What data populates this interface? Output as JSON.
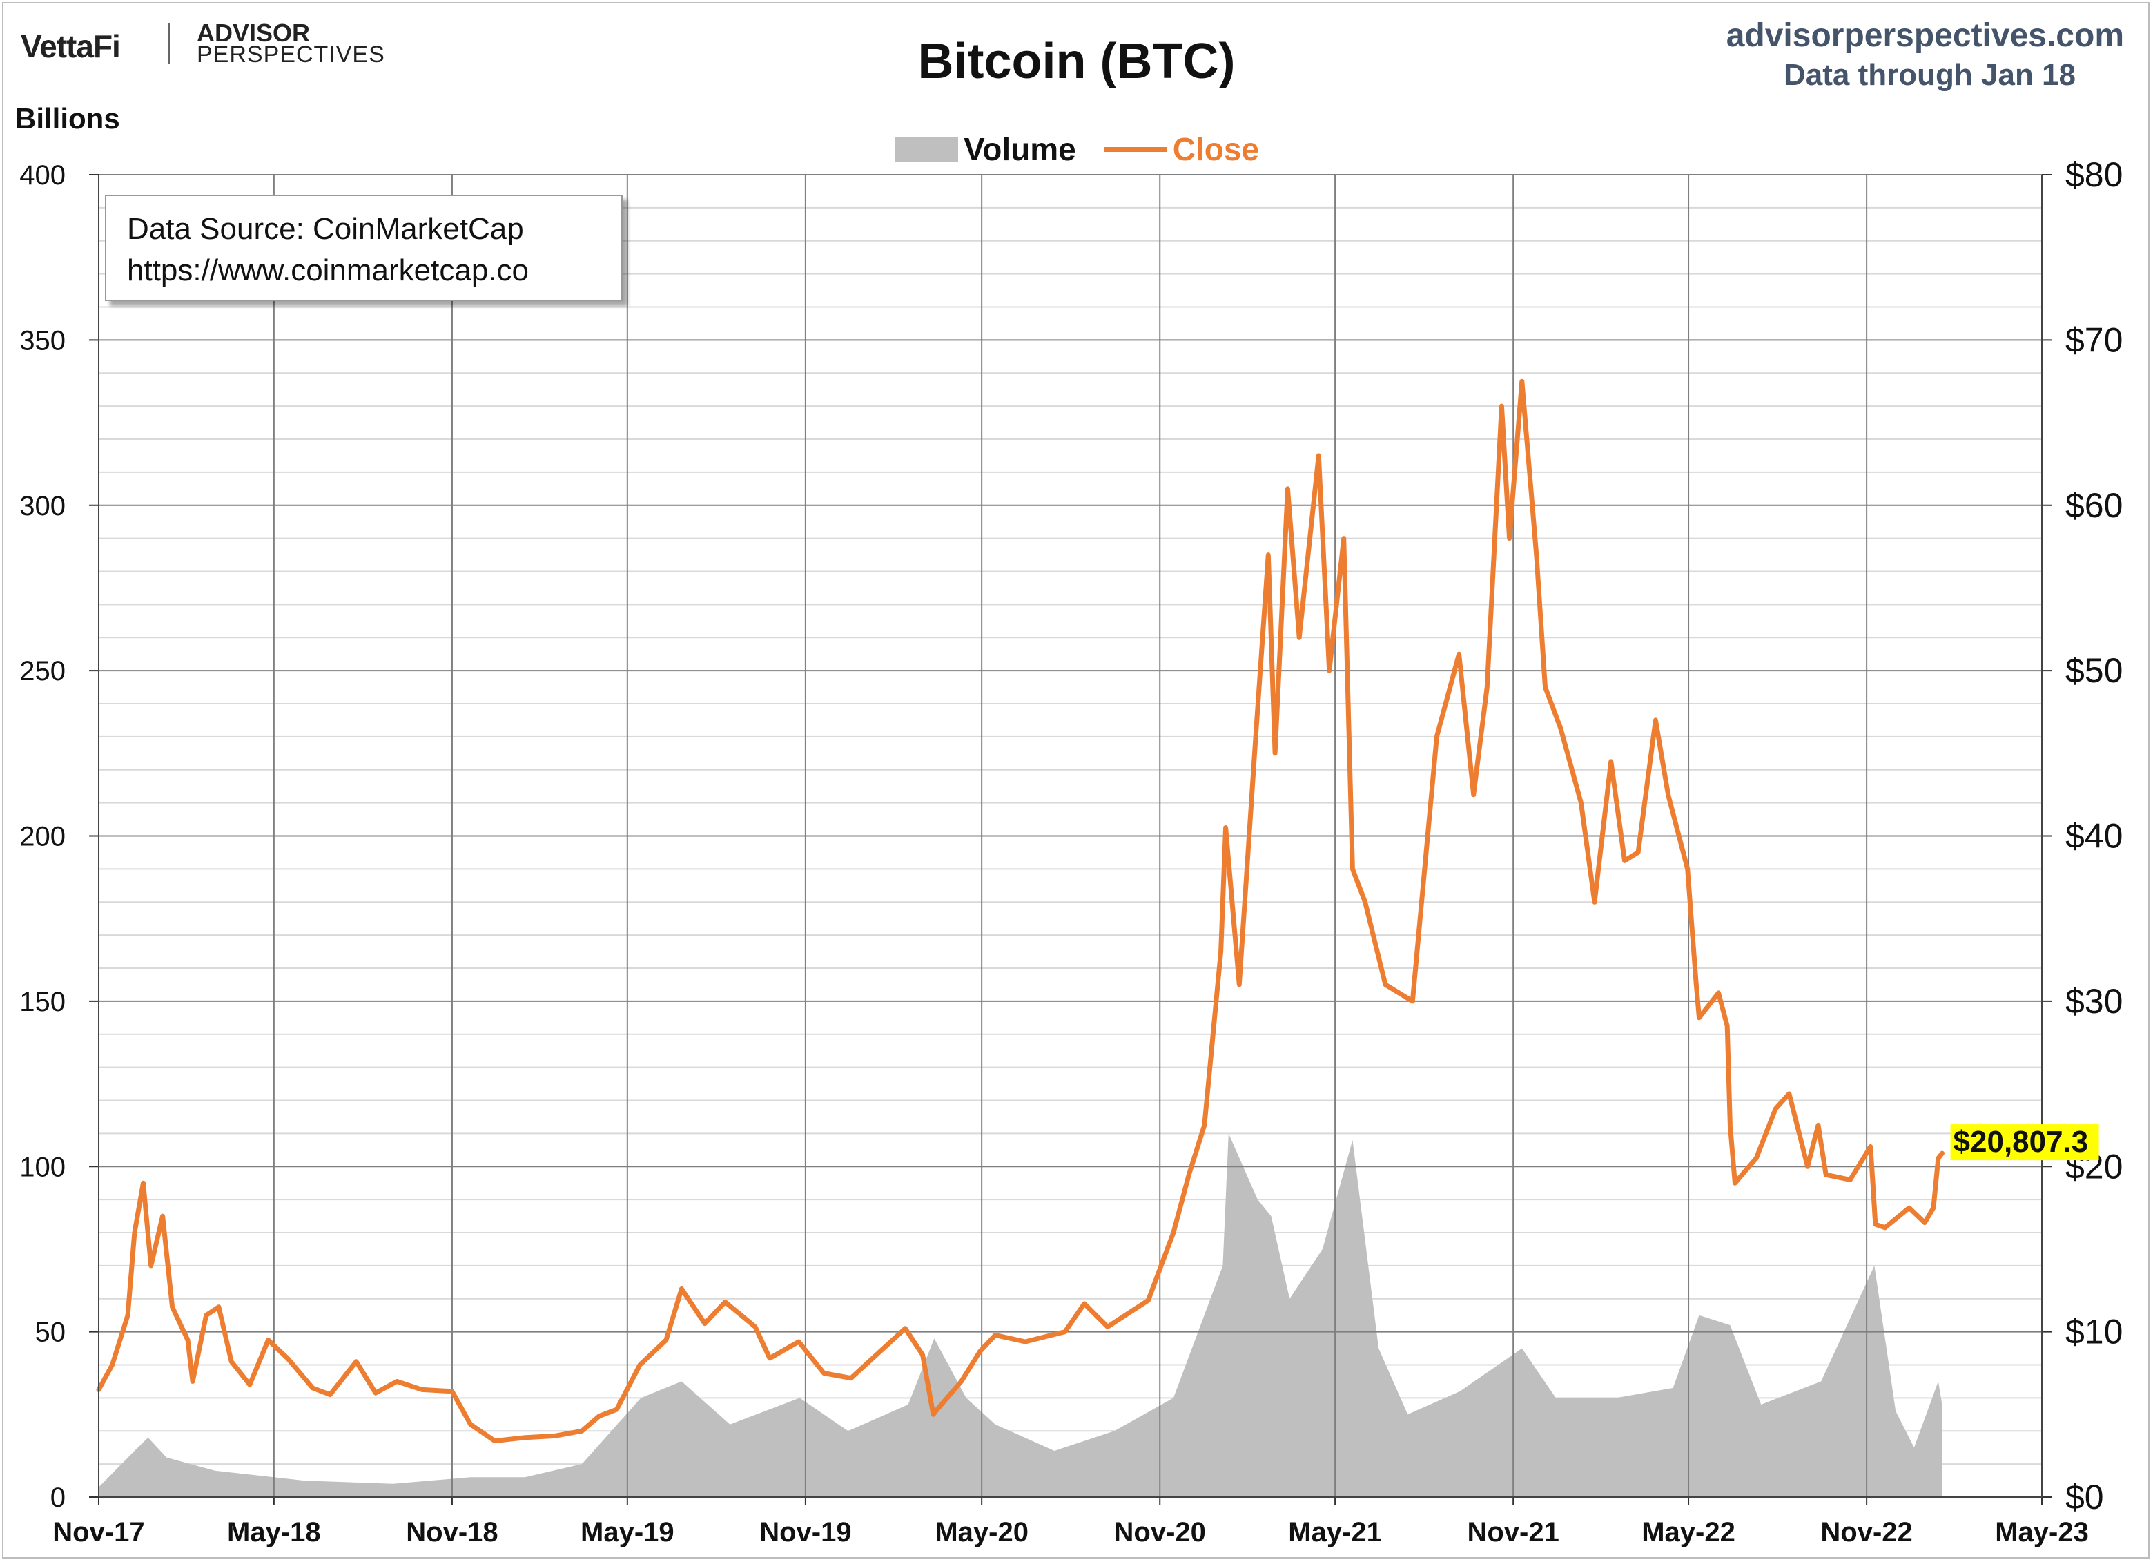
{
  "header": {
    "logo_vettafi": "VettaFi",
    "logo_ap_line1": "ADVISOR",
    "logo_ap_line2": "PERSPECTIVES",
    "site": "advisorperspectives.com",
    "data_through": "Data through Jan 18"
  },
  "source_box": {
    "line1": "Data Source: CoinMarketCap",
    "line2": "https://www.coinmarketcap.co"
  },
  "colors": {
    "close": "#ed7d31",
    "volume": "#bfbfbf",
    "grid_major": "#7f7f7f",
    "grid_minor": "#d9d9d9",
    "label_highlight": "#ffff00",
    "header_text": "#44546a"
  },
  "chart_data": {
    "type": "line",
    "title": "Bitcoin (BTC)",
    "left_axis": {
      "label": "Billions",
      "min": 0,
      "max": 400,
      "ticks": [
        0,
        50,
        100,
        150,
        200,
        250,
        300,
        350,
        400
      ]
    },
    "right_axis": {
      "label": "",
      "min": 0,
      "max": 80,
      "tick_labels": [
        "$0",
        "$10",
        "$20",
        "$30",
        "$40",
        "$50",
        "$60",
        "$70",
        "$80"
      ]
    },
    "x_axis": {
      "start": "2017-11-01",
      "end": "2023-05-01",
      "tick_labels": [
        "Nov-17",
        "May-18",
        "Nov-18",
        "May-19",
        "Nov-19",
        "May-20",
        "Nov-20",
        "May-21",
        "Nov-21",
        "May-22",
        "Nov-22",
        "May-23"
      ]
    },
    "grid": true,
    "legend": {
      "position": "top-center",
      "entries": [
        "Volume",
        "Close"
      ]
    },
    "last_value_label": "$20,807.3",
    "series": [
      {
        "name": "Close",
        "axis": "right",
        "style": "line",
        "x": [
          "2017-11-01",
          "2017-11-15",
          "2017-12-01",
          "2017-12-08",
          "2017-12-17",
          "2017-12-25",
          "2018-01-06",
          "2018-01-16",
          "2018-02-01",
          "2018-02-06",
          "2018-02-20",
          "2018-03-05",
          "2018-03-18",
          "2018-04-06",
          "2018-04-25",
          "2018-05-15",
          "2018-06-10",
          "2018-06-28",
          "2018-07-25",
          "2018-08-14",
          "2018-09-05",
          "2018-10-01",
          "2018-11-01",
          "2018-11-20",
          "2018-12-15",
          "2019-01-15",
          "2019-02-15",
          "2019-03-15",
          "2019-04-02",
          "2019-04-20",
          "2019-05-14",
          "2019-06-10",
          "2019-06-26",
          "2019-07-20",
          "2019-08-10",
          "2019-09-10",
          "2019-09-25",
          "2019-10-25",
          "2019-11-20",
          "2019-12-18",
          "2020-01-15",
          "2020-02-12",
          "2020-03-01",
          "2020-03-12",
          "2020-03-16",
          "2020-04-10",
          "2020-04-29",
          "2020-05-15",
          "2020-06-15",
          "2020-07-26",
          "2020-08-15",
          "2020-09-08",
          "2020-10-20",
          "2020-11-15",
          "2020-12-01",
          "2020-12-17",
          "2021-01-03",
          "2021-01-08",
          "2021-01-22",
          "2021-02-08",
          "2021-02-21",
          "2021-02-28",
          "2021-03-13",
          "2021-03-25",
          "2021-04-14",
          "2021-04-25",
          "2021-05-10",
          "2021-05-19",
          "2021-06-01",
          "2021-06-22",
          "2021-07-20",
          "2021-08-14",
          "2021-09-06",
          "2021-09-21",
          "2021-10-05",
          "2021-10-20",
          "2021-10-28",
          "2021-11-10",
          "2021-11-25",
          "2021-12-04",
          "2021-12-20",
          "2022-01-10",
          "2022-01-24",
          "2022-02-10",
          "2022-02-24",
          "2022-03-10",
          "2022-03-28",
          "2022-04-10",
          "2022-04-30",
          "2022-05-09",
          "2022-05-12",
          "2022-06-01",
          "2022-06-10",
          "2022-06-13",
          "2022-06-18",
          "2022-07-10",
          "2022-07-30",
          "2022-08-13",
          "2022-09-01",
          "2022-09-12",
          "2022-09-20",
          "2022-10-15",
          "2022-11-05",
          "2022-11-08",
          "2022-11-10",
          "2022-11-20",
          "2022-12-15",
          "2022-12-31",
          "2023-01-09",
          "2023-01-14",
          "2023-01-18"
        ],
        "values": [
          6.5,
          8.0,
          11.0,
          16.0,
          19.0,
          14.0,
          17.0,
          11.5,
          9.5,
          7.0,
          11.0,
          11.5,
          8.2,
          6.8,
          9.5,
          8.4,
          6.6,
          6.2,
          8.2,
          6.3,
          7.0,
          6.5,
          6.4,
          4.4,
          3.4,
          3.6,
          3.7,
          4.0,
          4.9,
          5.3,
          8.0,
          9.5,
          12.6,
          10.5,
          11.8,
          10.3,
          8.4,
          9.4,
          7.5,
          7.2,
          8.7,
          10.2,
          8.6,
          5.0,
          5.3,
          7.0,
          8.8,
          9.8,
          9.4,
          10.0,
          11.7,
          10.3,
          11.9,
          16.0,
          19.5,
          22.5,
          33.0,
          40.5,
          31.0,
          46.0,
          57.0,
          45.0,
          61.0,
          52.0,
          63.0,
          50.0,
          58.0,
          38.0,
          36.0,
          31.0,
          30.0,
          46.0,
          51.0,
          42.5,
          49.0,
          66.0,
          58.0,
          67.5,
          57.0,
          49.0,
          46.5,
          42.0,
          36.0,
          44.5,
          38.5,
          39.0,
          47.0,
          42.5,
          38.0,
          31.0,
          29.0,
          30.5,
          28.5,
          22.5,
          19.0,
          20.5,
          23.5,
          24.4,
          20.0,
          22.5,
          19.5,
          19.2,
          21.2,
          18.5,
          16.5,
          16.3,
          17.5,
          16.6,
          17.5,
          20.5,
          20.8
        ]
      },
      {
        "name": "Volume",
        "axis": "left",
        "style": "area",
        "x": [
          "2017-11-01",
          "2017-12-08",
          "2017-12-22",
          "2018-01-10",
          "2018-03-01",
          "2018-06-01",
          "2018-09-01",
          "2018-11-20",
          "2019-01-15",
          "2019-03-15",
          "2019-05-15",
          "2019-06-26",
          "2019-08-15",
          "2019-10-26",
          "2019-12-15",
          "2020-02-15",
          "2020-03-13",
          "2020-04-15",
          "2020-05-15",
          "2020-07-15",
          "2020-09-15",
          "2020-11-15",
          "2021-01-05",
          "2021-01-11",
          "2021-02-10",
          "2021-02-24",
          "2021-03-15",
          "2021-04-18",
          "2021-05-19",
          "2021-06-15",
          "2021-07-15",
          "2021-09-07",
          "2021-11-10",
          "2021-12-15",
          "2022-02-15",
          "2022-04-15",
          "2022-05-12",
          "2022-06-13",
          "2022-07-15",
          "2022-09-15",
          "2022-11-09",
          "2022-12-01",
          "2022-12-20",
          "2023-01-14",
          "2023-01-18"
        ],
        "values": [
          3,
          14,
          18,
          12,
          8,
          5,
          4,
          6,
          6,
          10,
          30,
          35,
          22,
          30,
          20,
          28,
          48,
          30,
          22,
          14,
          20,
          30,
          70,
          110,
          90,
          85,
          60,
          75,
          108,
          45,
          25,
          32,
          45,
          30,
          30,
          33,
          55,
          52,
          28,
          35,
          70,
          26,
          15,
          35,
          28
        ]
      }
    ]
  }
}
